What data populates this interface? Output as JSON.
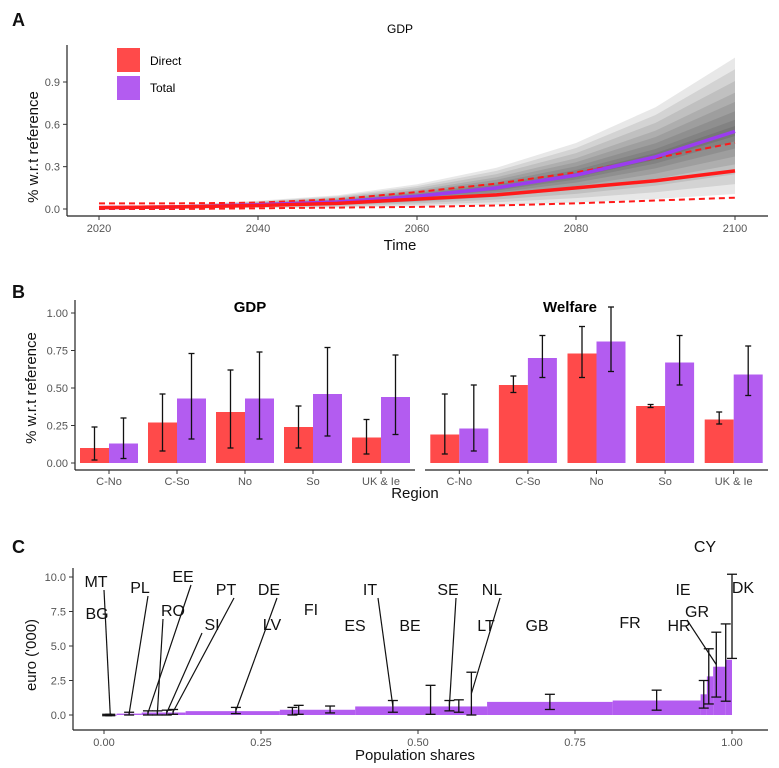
{
  "colors": {
    "direct": "#ff4a4a",
    "total": "#b35cf0",
    "line_direct": "#ff1a1a",
    "line_total": "#9b3cf0",
    "error": "#111111"
  },
  "chart_data": [
    {
      "panel": "A",
      "type": "line",
      "title": "GDP",
      "xlabel": "Time",
      "ylabel": "% w.r.t reference",
      "xlim": [
        2020,
        2100
      ],
      "ylim": [
        0,
        0.9
      ],
      "xticks": [
        "2020",
        "2040",
        "2060",
        "2080",
        "2100"
      ],
      "yticks": [
        "0.0",
        "0.3",
        "0.6",
        "0.9"
      ],
      "legend": {
        "placement": "top-left",
        "entries": [
          "Direct",
          "Total"
        ]
      },
      "x": [
        2020,
        2030,
        2040,
        2050,
        2060,
        2070,
        2080,
        2090,
        2100
      ],
      "series": [
        {
          "name": "Total",
          "values": [
            0.01,
            0.015,
            0.03,
            0.05,
            0.09,
            0.15,
            0.24,
            0.37,
            0.55
          ]
        },
        {
          "name": "Direct",
          "values": [
            0.01,
            0.015,
            0.025,
            0.04,
            0.07,
            0.1,
            0.15,
            0.2,
            0.27
          ],
          "upper": [
            0.04,
            0.04,
            0.045,
            0.07,
            0.12,
            0.18,
            0.26,
            0.36,
            0.47
          ],
          "lower": [
            0.0,
            0.0,
            0.005,
            0.01,
            0.015,
            0.025,
            0.04,
            0.06,
            0.08
          ]
        }
      ],
      "uncertainty_fan": "grey gradient around Total"
    },
    {
      "panel": "B",
      "type": "bar",
      "xlabel": "Region",
      "ylabel": "% w.r.t reference",
      "ylim": [
        0,
        1.0
      ],
      "yticks": [
        "0.00",
        "0.25",
        "0.50",
        "0.75",
        "1.00"
      ],
      "categories": [
        "C-No",
        "C-So",
        "No",
        "So",
        "UK & Ie"
      ],
      "facets": [
        {
          "title": "GDP",
          "series": [
            {
              "name": "Direct",
              "values": [
                0.1,
                0.27,
                0.34,
                0.24,
                0.17
              ],
              "lo": [
                0.02,
                0.08,
                0.1,
                0.1,
                0.06
              ],
              "hi": [
                0.24,
                0.46,
                0.62,
                0.38,
                0.29
              ]
            },
            {
              "name": "Total",
              "values": [
                0.13,
                0.43,
                0.43,
                0.46,
                0.44
              ],
              "lo": [
                0.03,
                0.16,
                0.16,
                0.18,
                0.19
              ],
              "hi": [
                0.3,
                0.73,
                0.74,
                0.77,
                0.72
              ]
            }
          ]
        },
        {
          "title": "Welfare",
          "series": [
            {
              "name": "Direct",
              "values": [
                0.19,
                0.52,
                0.73,
                0.38,
                0.29
              ],
              "lo": [
                0.06,
                0.47,
                0.57,
                0.37,
                0.26
              ],
              "hi": [
                0.46,
                0.58,
                0.91,
                0.39,
                0.34
              ]
            },
            {
              "name": "Total",
              "values": [
                0.23,
                0.7,
                0.81,
                0.67,
                0.59
              ],
              "lo": [
                0.08,
                0.57,
                0.61,
                0.52,
                0.45
              ],
              "hi": [
                0.52,
                0.85,
                1.04,
                0.85,
                0.78
              ]
            }
          ]
        }
      ]
    },
    {
      "panel": "C",
      "type": "area",
      "xlabel": "Population shares",
      "ylabel": "euro ('000)",
      "xlim": [
        0,
        1
      ],
      "ylim": [
        0,
        10
      ],
      "xticks": [
        "0.00",
        "0.25",
        "0.50",
        "0.75",
        "1.00"
      ],
      "yticks": [
        "0.0",
        "2.5",
        "5.0",
        "7.5",
        "10.0"
      ],
      "steps": [
        [
          0,
          0.02,
          0.02
        ],
        [
          0.02,
          0.06,
          0.1
        ],
        [
          0.06,
          0.13,
          0.18
        ],
        [
          0.13,
          0.28,
          0.28
        ],
        [
          0.28,
          0.4,
          0.38
        ],
        [
          0.4,
          0.61,
          0.62
        ],
        [
          0.61,
          0.81,
          0.95
        ],
        [
          0.81,
          0.95,
          1.05
        ],
        [
          0.95,
          0.96,
          1.5
        ],
        [
          0.96,
          0.97,
          2.8
        ],
        [
          0.97,
          0.99,
          3.5
        ],
        [
          0.99,
          1.0,
          4.0
        ]
      ],
      "countries": [
        {
          "label": "BG",
          "x": 0.005,
          "lo": -0.05,
          "hi": 0.05
        },
        {
          "label": "MT",
          "x": 0.01,
          "lo": -0.05,
          "hi": 0.05
        },
        {
          "label": "PL",
          "x": 0.04,
          "lo": 0.0,
          "hi": 0.2
        },
        {
          "label": "EE",
          "x": 0.07,
          "lo": 0.0,
          "hi": 0.3
        },
        {
          "label": "RO",
          "x": 0.085,
          "lo": 0.0,
          "hi": 0.3
        },
        {
          "label": "PT",
          "x": 0.11,
          "lo": 0.05,
          "hi": 0.4
        },
        {
          "label": "SI",
          "x": 0.1,
          "lo": 0.0,
          "hi": 0.35
        },
        {
          "label": "DE",
          "x": 0.21,
          "lo": 0.1,
          "hi": 0.55
        },
        {
          "label": "LV",
          "x": 0.3,
          "lo": 0.0,
          "hi": 0.55
        },
        {
          "label": "FI",
          "x": 0.31,
          "lo": 0.05,
          "hi": 0.7
        },
        {
          "label": "ES",
          "x": 0.36,
          "lo": 0.15,
          "hi": 0.65
        },
        {
          "label": "IT",
          "x": 0.46,
          "lo": 0.2,
          "hi": 1.05
        },
        {
          "label": "BE",
          "x": 0.52,
          "lo": 0.05,
          "hi": 2.15
        },
        {
          "label": "SE",
          "x": 0.55,
          "lo": 0.3,
          "hi": 1.05
        },
        {
          "label": "LT",
          "x": 0.565,
          "lo": 0.2,
          "hi": 1.1
        },
        {
          "label": "NL",
          "x": 0.585,
          "lo": 0.0,
          "hi": 3.1
        },
        {
          "label": "GB",
          "x": 0.71,
          "lo": 0.4,
          "hi": 1.5
        },
        {
          "label": "FR",
          "x": 0.88,
          "lo": 0.35,
          "hi": 1.8
        },
        {
          "label": "HR",
          "x": 0.955,
          "lo": 0.5,
          "hi": 2.5
        },
        {
          "label": "IE",
          "x": 0.963,
          "lo": 0.8,
          "hi": 4.8
        },
        {
          "label": "GR",
          "x": 0.975,
          "lo": 1.3,
          "hi": 6.0
        },
        {
          "label": "CY",
          "x": 0.99,
          "lo": 1.0,
          "hi": 6.6
        },
        {
          "label": "DK",
          "x": 1.0,
          "lo": 4.1,
          "hi": 10.2
        }
      ]
    }
  ],
  "panel_labels": [
    "A",
    "B",
    "C"
  ]
}
